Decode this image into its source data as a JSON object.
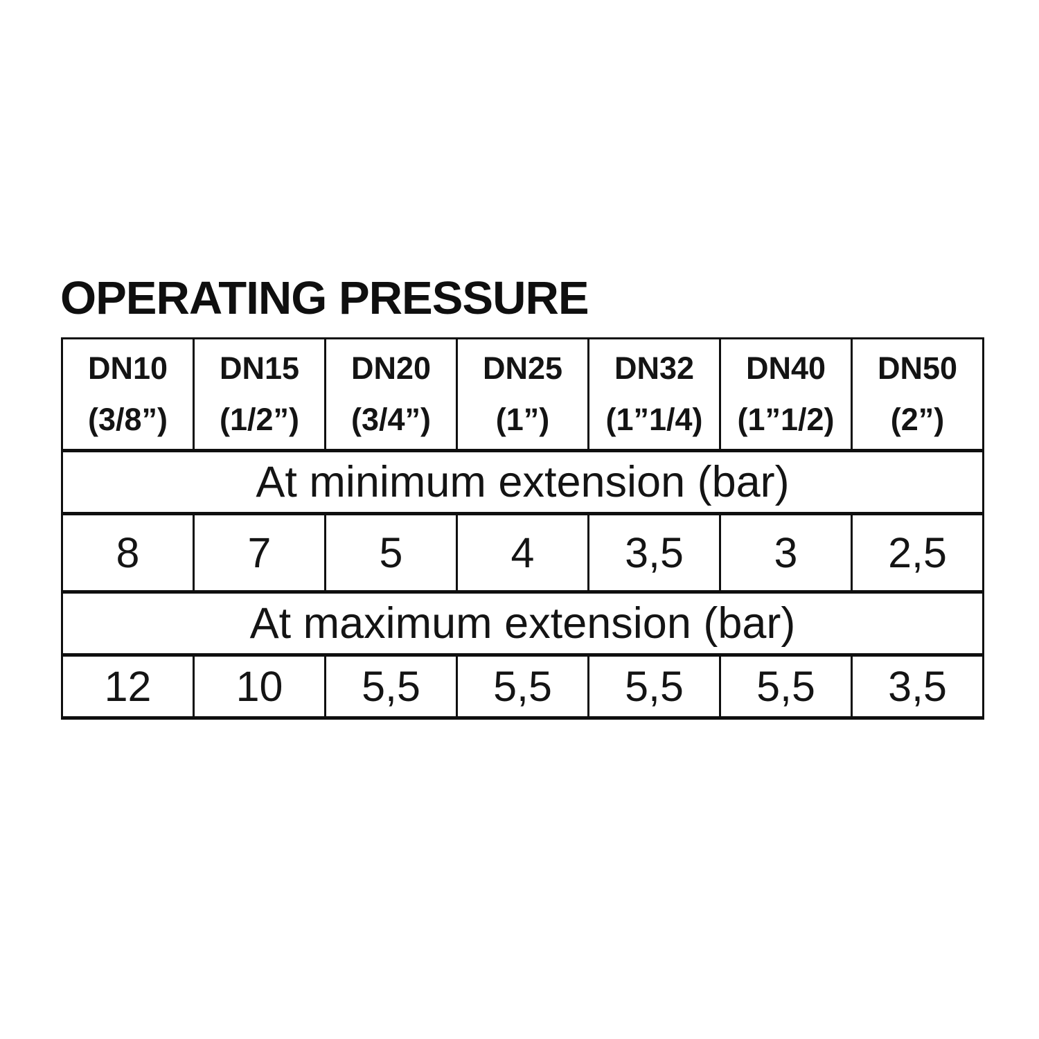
{
  "title": "OPERATING PRESSURE",
  "colors": {
    "background": "#ffffff",
    "text": "#141414",
    "border": "#0f0f0f"
  },
  "table": {
    "columns": [
      {
        "dn": "DN10",
        "size": "(3/8”)"
      },
      {
        "dn": "DN15",
        "size": "(1/2”)"
      },
      {
        "dn": "DN20",
        "size": "(3/4”)"
      },
      {
        "dn": "DN25",
        "size": "(1”)"
      },
      {
        "dn": "DN32",
        "size": "(1”1/4)"
      },
      {
        "dn": "DN40",
        "size": "(1”1/2)"
      },
      {
        "dn": "DN50",
        "size": "(2”)"
      }
    ],
    "sections": [
      {
        "label": "At minimum extension (bar)",
        "values": [
          "8",
          "7",
          "5",
          "4",
          "3,5",
          "3",
          "2,5"
        ]
      },
      {
        "label": "At maximum extension (bar)",
        "values": [
          "12",
          "10",
          "5,5",
          "5,5",
          "5,5",
          "5,5",
          "3,5"
        ]
      }
    ]
  }
}
